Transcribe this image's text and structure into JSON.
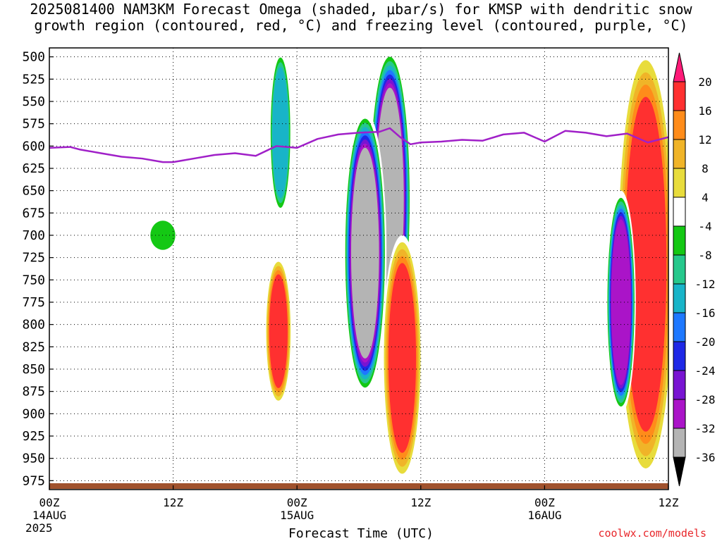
{
  "chart_data": {
    "type": "heatmap",
    "title": "2025081400 NAM3KM Forecast Omega (shaded, μbar/s) for KMSP with dendritic snow",
    "subtitle": "growth region (contoured, red, °C) and freezing level (contoured, purple, °C)",
    "xlabel": "Forecast Time (UTC)",
    "year_label": "2025",
    "credit": "coolwx.com/models",
    "x_ticks": [
      {
        "hour": 0,
        "label": "00Z",
        "date": "14AUG"
      },
      {
        "hour": 12,
        "label": "12Z",
        "date": ""
      },
      {
        "hour": 24,
        "label": "00Z",
        "date": "15AUG"
      },
      {
        "hour": 36,
        "label": "12Z",
        "date": ""
      },
      {
        "hour": 48,
        "label": "00Z",
        "date": "16AUG"
      },
      {
        "hour": 60,
        "label": "12Z",
        "date": ""
      }
    ],
    "xlim": [
      0,
      60
    ],
    "ylim": [
      490,
      985
    ],
    "y_ticks": [
      500,
      525,
      550,
      575,
      600,
      625,
      650,
      675,
      700,
      725,
      750,
      775,
      800,
      825,
      850,
      875,
      900,
      925,
      950,
      975
    ],
    "colorbar": {
      "labels": [
        "20",
        "16",
        "12",
        "8",
        "4",
        "-4",
        "-8",
        "-12",
        "-16",
        "-20",
        "-24",
        "-28",
        "-32",
        "-36"
      ],
      "levels": [
        20,
        16,
        12,
        8,
        4,
        -4,
        -8,
        -12,
        -16,
        -20,
        -24,
        -28,
        -32,
        -36
      ],
      "colors": [
        "#ff1a78",
        "#ff3030",
        "#ff8c1a",
        "#f0b428",
        "#e8dc3c",
        "#ffffff",
        "#14c814",
        "#26c88c",
        "#18b4c8",
        "#1e78ff",
        "#1e28e6",
        "#7814d2",
        "#aa14c8",
        "#b4b4b4",
        "#000000"
      ]
    },
    "freezing_level": {
      "hours": [
        0,
        2,
        3,
        5,
        7,
        9,
        11,
        12,
        14,
        16,
        18,
        20,
        22,
        24,
        26,
        28,
        30,
        32,
        33,
        34,
        35,
        36,
        38,
        40,
        42,
        44,
        46,
        48,
        50,
        52,
        54,
        56,
        58,
        60
      ],
      "pressure": [
        602,
        601,
        604,
        608,
        612,
        614,
        618,
        618,
        614,
        610,
        608,
        611,
        600,
        602,
        592,
        587,
        585,
        584,
        580,
        590,
        598,
        596,
        595,
        593,
        594,
        587,
        585,
        595,
        583,
        585,
        589,
        586,
        596,
        590
      ],
      "color": "#a020c8"
    },
    "omega_blobs": [
      {
        "hour": 33.0,
        "p_top": 490,
        "p_bot": 830,
        "width_h": 2.6,
        "value": -36
      },
      {
        "hour": 30.6,
        "p_top": 560,
        "p_bot": 880,
        "width_h": 2.6,
        "value": -36
      },
      {
        "hour": 34.2,
        "p_top": 700,
        "p_bot": 975,
        "width_h": 2.4,
        "value": 20
      },
      {
        "hour": 22.2,
        "p_top": 725,
        "p_bot": 890,
        "width_h": 1.6,
        "value": 20
      },
      {
        "hour": 57.8,
        "p_top": 490,
        "p_bot": 975,
        "width_h": 3.6,
        "value": 20
      },
      {
        "hour": 55.4,
        "p_top": 650,
        "p_bot": 900,
        "width_h": 1.8,
        "value": -32
      },
      {
        "hour": 22.4,
        "p_top": 490,
        "p_bot": 680,
        "width_h": 1.4,
        "value": -16
      },
      {
        "hour": 11.0,
        "p_top": 680,
        "p_bot": 720,
        "width_h": 2.0,
        "value": -8
      }
    ]
  }
}
